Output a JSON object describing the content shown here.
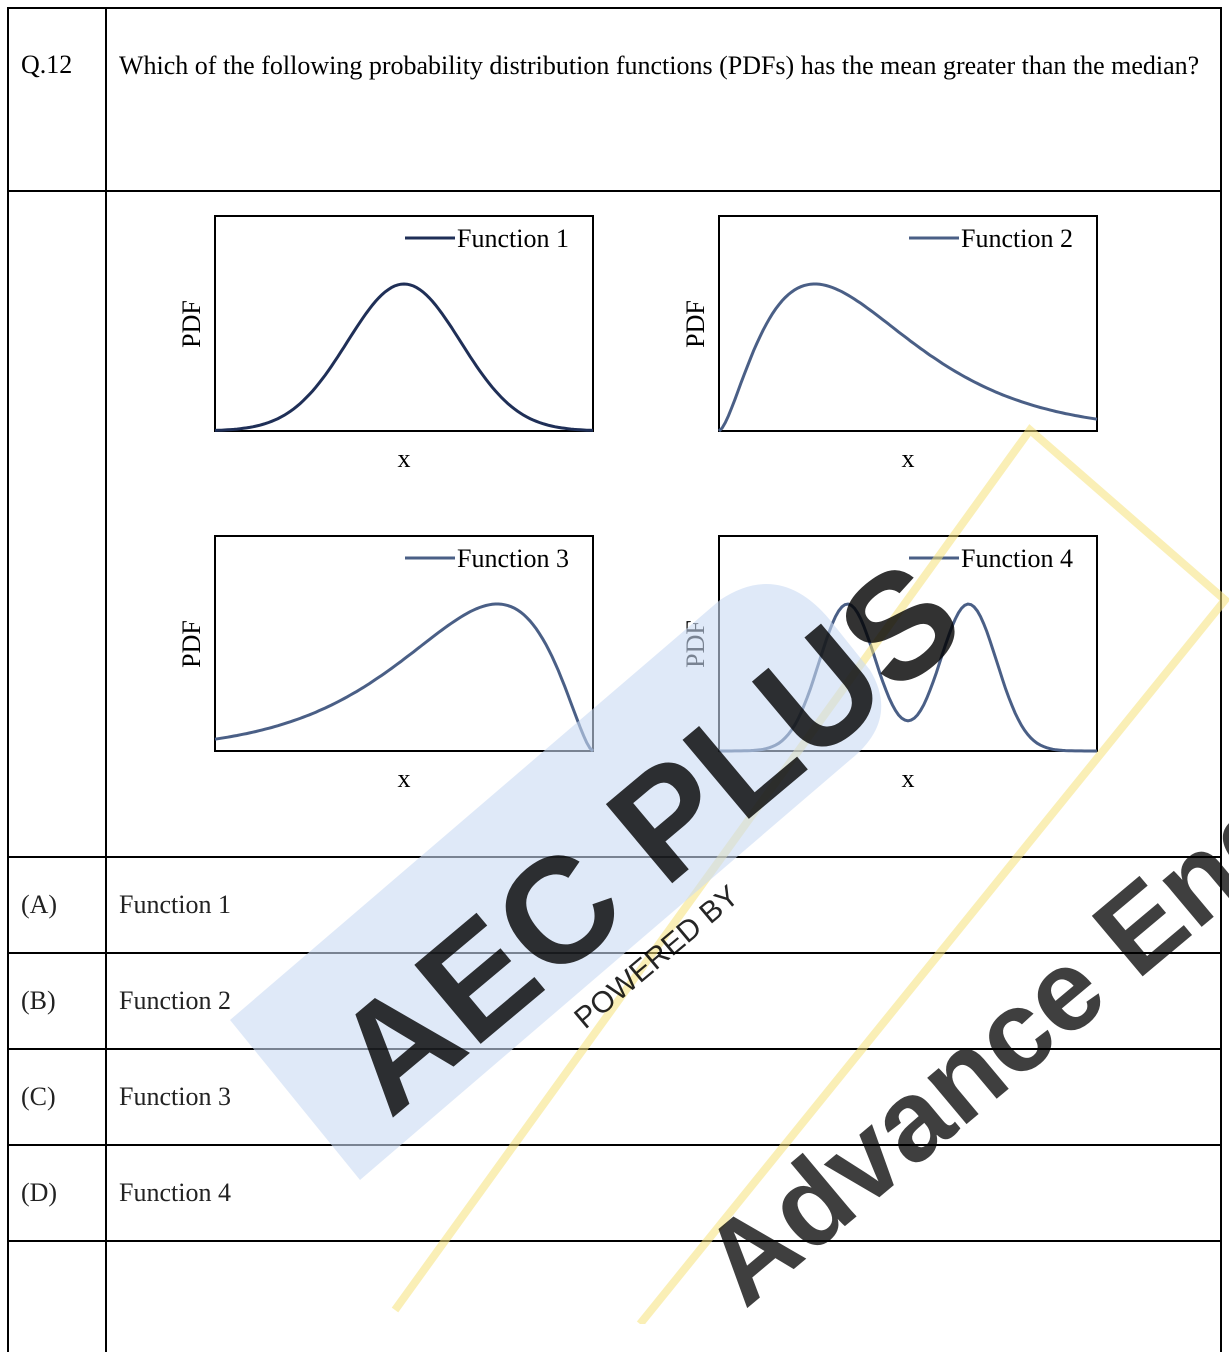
{
  "question": {
    "number": "Q.12",
    "text": "Which of the following probability distribution functions (PDFs) has the mean greater than the median?"
  },
  "chart_data": [
    {
      "type": "line",
      "title": "",
      "xlabel": "x",
      "ylabel": "PDF",
      "legend": "top-right",
      "series": [
        {
          "name": "Function 1",
          "shape": "symmetric",
          "x": [
            0,
            0.1,
            0.2,
            0.3,
            0.4,
            0.5,
            0.6,
            0.7,
            0.8,
            0.9,
            1.0
          ],
          "values": [
            0.0,
            0.03,
            0.14,
            0.43,
            0.83,
            1.0,
            0.83,
            0.43,
            0.14,
            0.03,
            0.0
          ]
        }
      ]
    },
    {
      "type": "line",
      "title": "",
      "xlabel": "x",
      "ylabel": "PDF",
      "legend": "top-right",
      "series": [
        {
          "name": "Function 2",
          "shape": "right-skewed",
          "x": [
            0,
            0.1,
            0.2,
            0.3,
            0.4,
            0.5,
            0.6,
            0.7,
            0.8,
            0.9,
            1.0
          ],
          "values": [
            0.0,
            0.62,
            0.97,
            0.93,
            0.7,
            0.45,
            0.25,
            0.12,
            0.05,
            0.02,
            0.0
          ]
        }
      ]
    },
    {
      "type": "line",
      "title": "",
      "xlabel": "x",
      "ylabel": "PDF",
      "legend": "top-right",
      "series": [
        {
          "name": "Function 3",
          "shape": "left-skewed",
          "x": [
            0,
            0.1,
            0.2,
            0.3,
            0.4,
            0.5,
            0.6,
            0.7,
            0.8,
            0.9,
            1.0
          ],
          "values": [
            0.0,
            0.02,
            0.05,
            0.12,
            0.25,
            0.45,
            0.7,
            0.93,
            0.97,
            0.62,
            0.0
          ]
        }
      ]
    },
    {
      "type": "line",
      "title": "",
      "xlabel": "x",
      "ylabel": "PDF",
      "legend": "top-right",
      "series": [
        {
          "name": "Function 4",
          "shape": "bimodal",
          "x": [
            0,
            0.1,
            0.2,
            0.3,
            0.4,
            0.5,
            0.6,
            0.7,
            0.8,
            0.9,
            1.0
          ],
          "values": [
            0.0,
            0.05,
            0.6,
            1.0,
            0.55,
            0.3,
            0.55,
            1.0,
            0.6,
            0.05,
            0.0
          ]
        }
      ]
    }
  ],
  "options": [
    {
      "label": "(A)",
      "text": "Function 1"
    },
    {
      "label": "(B)",
      "text": "Function 2"
    },
    {
      "label": "(C)",
      "text": "Function 3"
    },
    {
      "label": "(D)",
      "text": "Function 4"
    }
  ],
  "watermark": {
    "main": "AEC PLUS",
    "sub": "POWERED BY",
    "tagline": "Advance Engineering Classes",
    "colors": {
      "blue": "#a9c4ea",
      "yellow": "#f6e27a"
    }
  },
  "colors": {
    "curve": "#4a5f86",
    "curve_dark": "#1f2f57"
  }
}
